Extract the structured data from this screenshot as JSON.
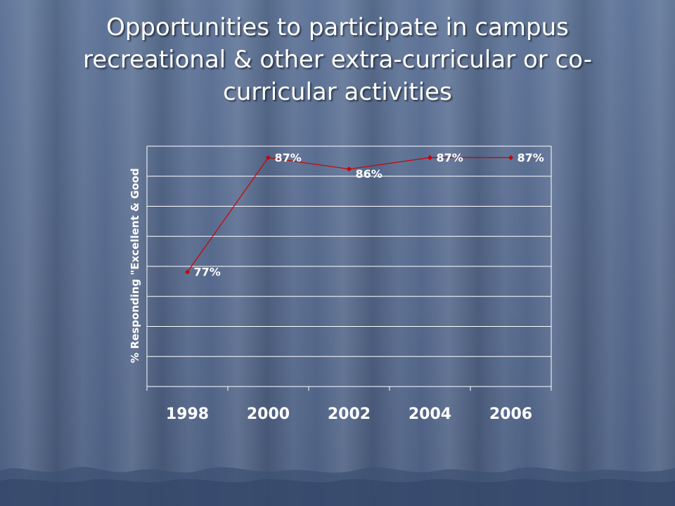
{
  "slide": {
    "title": "Opportunities to participate in campus recreational & other extra-curricular or co-curricular activities"
  },
  "colors": {
    "line": "#cc0000",
    "marker": "#cc0000",
    "grid": "#ffffff",
    "text": "#ffffff"
  },
  "chart_data": {
    "type": "line",
    "title": "",
    "xlabel": "",
    "ylabel": "% Responding \"Excellent & Good",
    "categories": [
      "1998",
      "2000",
      "2002",
      "2004",
      "2006"
    ],
    "values": [
      77,
      87,
      86,
      87,
      87
    ],
    "data_labels": [
      "77%",
      "87%",
      "86%",
      "87%",
      "87%"
    ],
    "ylim": [
      67,
      88
    ],
    "y_gridlines": 8,
    "grid": true,
    "legend": "none"
  }
}
